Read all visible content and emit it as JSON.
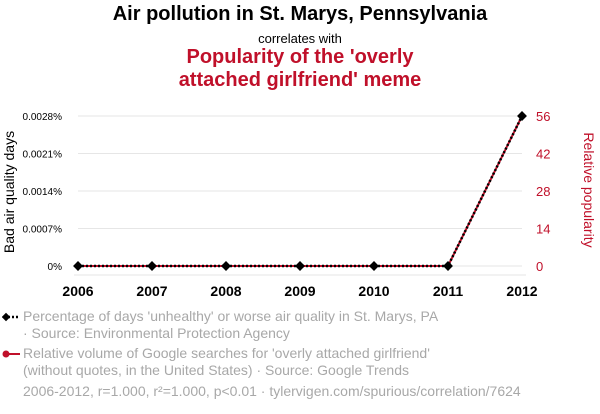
{
  "title": {
    "line1": "Air pollution in St. Marys, Pennsylvania",
    "line2": "correlates with",
    "line3a": "Popularity of the 'overly",
    "line3b": "attached girlfriend' meme"
  },
  "legend": {
    "series1_line1": "Percentage of days 'unhealthy' or worse air quality in St. Marys, PA",
    "series1_line2": "· Source: Environmental Protection Agency",
    "series2_line1": "Relative volume of Google searches for 'overly attached girlfriend'",
    "series2_line2": "(without quotes, in the United States) · Source: Google Trends"
  },
  "footer": "2006-2012, r=1.000, r²=1.000, p<0.01 · tylervigen.com/spurious/correlation/7624",
  "colors": {
    "left": "#000000",
    "right": "#c0102a",
    "muted": "#a8a8a8",
    "grid": "#e6e6e6"
  },
  "chart_data": {
    "type": "line",
    "x": [
      "2006",
      "2007",
      "2008",
      "2009",
      "2010",
      "2011",
      "2012"
    ],
    "series": [
      {
        "name": "Bad air quality days",
        "axis": "left",
        "values": [
          0,
          0,
          0,
          0,
          0,
          0,
          0.0028
        ]
      },
      {
        "name": "Relative popularity",
        "axis": "right",
        "values": [
          0,
          0,
          0,
          0,
          0,
          0,
          56
        ]
      }
    ],
    "ylabel_left": "Bad air quality days",
    "ylabel_right": "Relative popularity",
    "yticks_left": [
      "0%",
      "0.0007%",
      "0.0014%",
      "0.0021%",
      "0.0028%"
    ],
    "yticks_right": [
      "0",
      "14",
      "28",
      "42",
      "56"
    ],
    "ylim_left": [
      0,
      0.0028
    ],
    "ylim_right": [
      0,
      56
    ],
    "grid": true
  }
}
